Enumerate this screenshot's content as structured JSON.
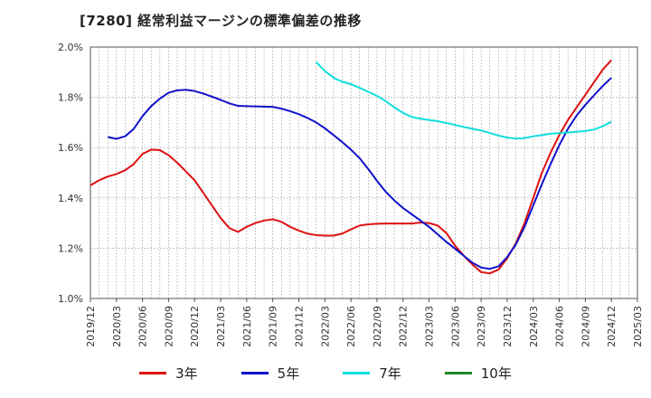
{
  "chart_data": {
    "type": "line",
    "title": "[7280]  経常利益マージンの標準偏差の推移",
    "xlabel": "",
    "ylabel": "",
    "ylim": [
      1.0,
      2.0
    ],
    "y_ticks": [
      "1.0%",
      "1.2%",
      "1.4%",
      "1.6%",
      "1.8%",
      "2.0%"
    ],
    "x_ticks": [
      "2019/12",
      "2020/03",
      "2020/06",
      "2020/09",
      "2020/12",
      "2021/03",
      "2021/06",
      "2021/09",
      "2021/12",
      "2022/03",
      "2022/06",
      "2022/09",
      "2022/12",
      "2023/03",
      "2023/06",
      "2023/09",
      "2023/12",
      "2024/03",
      "2024/06",
      "2024/09",
      "2024/12",
      "2025/03"
    ],
    "grid": true,
    "legend_position": "bottom",
    "series": [
      {
        "name": "3年",
        "color": "#dd1111",
        "points": [
          [
            "2019/12",
            1.45
          ],
          [
            "2020/01",
            1.47
          ],
          [
            "2020/02",
            1.485
          ],
          [
            "2020/03",
            1.495
          ],
          [
            "2020/04",
            1.51
          ],
          [
            "2020/05",
            1.535
          ],
          [
            "2020/06",
            1.575
          ],
          [
            "2020/07",
            1.592
          ],
          [
            "2020/08",
            1.59
          ],
          [
            "2020/09",
            1.57
          ],
          [
            "2020/10",
            1.54
          ],
          [
            "2020/11",
            1.505
          ],
          [
            "2020/12",
            1.47
          ],
          [
            "2021/01",
            1.42
          ],
          [
            "2021/02",
            1.37
          ],
          [
            "2021/03",
            1.32
          ],
          [
            "2021/04",
            1.28
          ],
          [
            "2021/05",
            1.265
          ],
          [
            "2021/06",
            1.285
          ],
          [
            "2021/07",
            1.3
          ],
          [
            "2021/08",
            1.31
          ],
          [
            "2021/09",
            1.315
          ],
          [
            "2021/10",
            1.305
          ],
          [
            "2021/11",
            1.285
          ],
          [
            "2021/12",
            1.27
          ],
          [
            "2022/01",
            1.258
          ],
          [
            "2022/02",
            1.252
          ],
          [
            "2022/03",
            1.25
          ],
          [
            "2022/04",
            1.25
          ],
          [
            "2022/05",
            1.258
          ],
          [
            "2022/06",
            1.275
          ],
          [
            "2022/07",
            1.29
          ],
          [
            "2022/08",
            1.295
          ],
          [
            "2022/09",
            1.297
          ],
          [
            "2022/10",
            1.298
          ],
          [
            "2022/11",
            1.298
          ],
          [
            "2022/12",
            1.298
          ],
          [
            "2023/01",
            1.298
          ],
          [
            "2023/02",
            1.302
          ],
          [
            "2023/03",
            1.3
          ],
          [
            "2023/04",
            1.29
          ],
          [
            "2023/05",
            1.26
          ],
          [
            "2023/06",
            1.21
          ],
          [
            "2023/07",
            1.17
          ],
          [
            "2023/08",
            1.135
          ],
          [
            "2023/09",
            1.105
          ],
          [
            "2023/10",
            1.1
          ],
          [
            "2023/11",
            1.115
          ],
          [
            "2023/12",
            1.16
          ],
          [
            "2024/01",
            1.22
          ],
          [
            "2024/02",
            1.3
          ],
          [
            "2024/03",
            1.4
          ],
          [
            "2024/04",
            1.5
          ],
          [
            "2024/05",
            1.58
          ],
          [
            "2024/06",
            1.65
          ],
          [
            "2024/07",
            1.71
          ],
          [
            "2024/08",
            1.76
          ],
          [
            "2024/09",
            1.81
          ],
          [
            "2024/10",
            1.86
          ],
          [
            "2024/11",
            1.91
          ],
          [
            "2024/12",
            1.948
          ]
        ]
      },
      {
        "name": "5年",
        "color": "#1111cc",
        "points": [
          [
            "2020/02",
            1.642
          ],
          [
            "2020/03",
            1.635
          ],
          [
            "2020/04",
            1.645
          ],
          [
            "2020/05",
            1.675
          ],
          [
            "2020/06",
            1.725
          ],
          [
            "2020/07",
            1.765
          ],
          [
            "2020/08",
            1.795
          ],
          [
            "2020/09",
            1.818
          ],
          [
            "2020/10",
            1.828
          ],
          [
            "2020/11",
            1.83
          ],
          [
            "2020/12",
            1.825
          ],
          [
            "2021/01",
            1.815
          ],
          [
            "2021/02",
            1.803
          ],
          [
            "2021/03",
            1.79
          ],
          [
            "2021/04",
            1.776
          ],
          [
            "2021/05",
            1.766
          ],
          [
            "2021/06",
            1.765
          ],
          [
            "2021/07",
            1.764
          ],
          [
            "2021/08",
            1.763
          ],
          [
            "2021/09",
            1.762
          ],
          [
            "2021/10",
            1.755
          ],
          [
            "2021/11",
            1.745
          ],
          [
            "2021/12",
            1.733
          ],
          [
            "2022/01",
            1.718
          ],
          [
            "2022/02",
            1.7
          ],
          [
            "2022/03",
            1.677
          ],
          [
            "2022/04",
            1.65
          ],
          [
            "2022/05",
            1.622
          ],
          [
            "2022/06",
            1.592
          ],
          [
            "2022/07",
            1.558
          ],
          [
            "2022/08",
            1.515
          ],
          [
            "2022/09",
            1.468
          ],
          [
            "2022/10",
            1.425
          ],
          [
            "2022/11",
            1.39
          ],
          [
            "2022/12",
            1.36
          ],
          [
            "2023/01",
            1.335
          ],
          [
            "2023/02",
            1.31
          ],
          [
            "2023/03",
            1.285
          ],
          [
            "2023/04",
            1.255
          ],
          [
            "2023/05",
            1.225
          ],
          [
            "2023/06",
            1.198
          ],
          [
            "2023/07",
            1.17
          ],
          [
            "2023/08",
            1.142
          ],
          [
            "2023/09",
            1.123
          ],
          [
            "2023/10",
            1.118
          ],
          [
            "2023/11",
            1.128
          ],
          [
            "2023/12",
            1.165
          ],
          [
            "2024/01",
            1.215
          ],
          [
            "2024/02",
            1.285
          ],
          [
            "2024/03",
            1.37
          ],
          [
            "2024/04",
            1.455
          ],
          [
            "2024/05",
            1.535
          ],
          [
            "2024/06",
            1.61
          ],
          [
            "2024/07",
            1.675
          ],
          [
            "2024/08",
            1.728
          ],
          [
            "2024/09",
            1.77
          ],
          [
            "2024/10",
            1.808
          ],
          [
            "2024/11",
            1.845
          ],
          [
            "2024/12",
            1.878
          ]
        ]
      },
      {
        "name": "7年",
        "color": "#11dddd",
        "points": [
          [
            "2022/02",
            1.94
          ],
          [
            "2022/03",
            1.905
          ],
          [
            "2022/04",
            1.878
          ],
          [
            "2022/05",
            1.862
          ],
          [
            "2022/06",
            1.852
          ],
          [
            "2022/07",
            1.838
          ],
          [
            "2022/08",
            1.822
          ],
          [
            "2022/09",
            1.806
          ],
          [
            "2022/10",
            1.785
          ],
          [
            "2022/11",
            1.76
          ],
          [
            "2022/12",
            1.738
          ],
          [
            "2023/01",
            1.722
          ],
          [
            "2023/02",
            1.715
          ],
          [
            "2023/03",
            1.71
          ],
          [
            "2023/04",
            1.705
          ],
          [
            "2023/05",
            1.698
          ],
          [
            "2023/06",
            1.69
          ],
          [
            "2023/07",
            1.682
          ],
          [
            "2023/08",
            1.675
          ],
          [
            "2023/09",
            1.668
          ],
          [
            "2023/10",
            1.658
          ],
          [
            "2023/11",
            1.648
          ],
          [
            "2023/12",
            1.64
          ],
          [
            "2024/01",
            1.636
          ],
          [
            "2024/02",
            1.638
          ],
          [
            "2024/03",
            1.645
          ],
          [
            "2024/04",
            1.65
          ],
          [
            "2024/05",
            1.655
          ],
          [
            "2024/06",
            1.658
          ],
          [
            "2024/07",
            1.66
          ],
          [
            "2024/08",
            1.663
          ],
          [
            "2024/09",
            1.666
          ],
          [
            "2024/10",
            1.672
          ],
          [
            "2024/11",
            1.685
          ],
          [
            "2024/12",
            1.703
          ]
        ]
      },
      {
        "name": "10年",
        "color": "#228822",
        "points": []
      }
    ]
  }
}
